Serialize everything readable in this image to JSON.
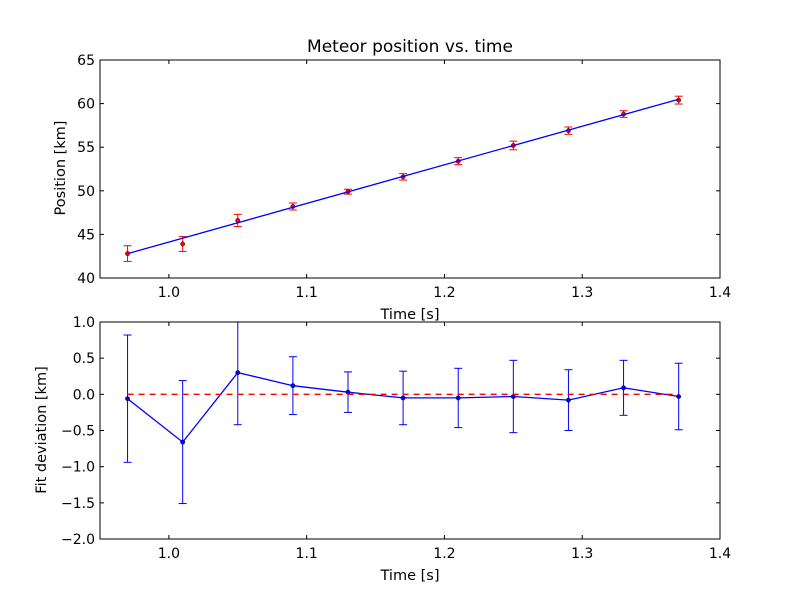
{
  "chart_data": [
    {
      "type": "scatter",
      "title": "Meteor position vs. time",
      "xlabel": "Time [s]",
      "ylabel": "Position [km]",
      "xlim": [
        0.95,
        1.4
      ],
      "ylim": [
        40,
        65
      ],
      "xticks": [
        1.0,
        1.1,
        1.2,
        1.3,
        1.4
      ],
      "xtick_labels": [
        "1.0",
        "1.1",
        "1.2",
        "1.3",
        "1.4"
      ],
      "yticks": [
        40,
        45,
        50,
        55,
        60,
        65
      ],
      "ytick_labels": [
        "40",
        "45",
        "50",
        "55",
        "60",
        "65"
      ],
      "grid": false,
      "series": [
        {
          "kind": "points-with-error",
          "color": "#ff0000",
          "x": [
            0.97,
            1.01,
            1.05,
            1.09,
            1.13,
            1.17,
            1.21,
            1.25,
            1.29,
            1.33,
            1.37
          ],
          "y": [
            42.8,
            43.9,
            46.6,
            48.2,
            49.9,
            51.6,
            53.4,
            55.2,
            56.9,
            58.8,
            60.4
          ],
          "yerr": [
            0.9,
            0.85,
            0.7,
            0.4,
            0.28,
            0.37,
            0.4,
            0.5,
            0.42,
            0.38,
            0.45
          ]
        },
        {
          "kind": "fit-line",
          "color": "#0000ff",
          "x": [
            0.97,
            1.37
          ],
          "y": [
            42.8,
            60.5
          ]
        }
      ]
    },
    {
      "type": "line",
      "xlabel": "Time [s]",
      "ylabel": "Fit deviation [km]",
      "xlim": [
        0.95,
        1.4
      ],
      "ylim": [
        -2.0,
        1.0
      ],
      "xticks": [
        1.0,
        1.1,
        1.2,
        1.3,
        1.4
      ],
      "xtick_labels": [
        "1.0",
        "1.1",
        "1.2",
        "1.3",
        "1.4"
      ],
      "yticks": [
        -2.0,
        -1.5,
        -1.0,
        -0.5,
        0.0,
        0.5,
        1.0
      ],
      "ytick_labels": [
        "−2.0",
        "−1.5",
        "−1.0",
        "−0.5",
        "0.0",
        "0.5",
        "1.0"
      ],
      "grid": false,
      "series": [
        {
          "kind": "line-with-error",
          "color": "#0000ff",
          "x": [
            0.97,
            1.01,
            1.05,
            1.09,
            1.13,
            1.17,
            1.21,
            1.25,
            1.29,
            1.33,
            1.37
          ],
          "y": [
            -0.06,
            -0.66,
            0.3,
            0.12,
            0.03,
            -0.05,
            -0.05,
            -0.03,
            -0.08,
            0.09,
            -0.03
          ],
          "yerr": [
            0.88,
            0.85,
            0.72,
            0.4,
            0.28,
            0.37,
            0.41,
            0.5,
            0.42,
            0.38,
            0.46
          ]
        },
        {
          "kind": "reference-line",
          "color": "#ff0000",
          "style": "dashed",
          "x": [
            0.97,
            1.37
          ],
          "y": [
            0.0,
            0.0
          ]
        }
      ]
    }
  ]
}
